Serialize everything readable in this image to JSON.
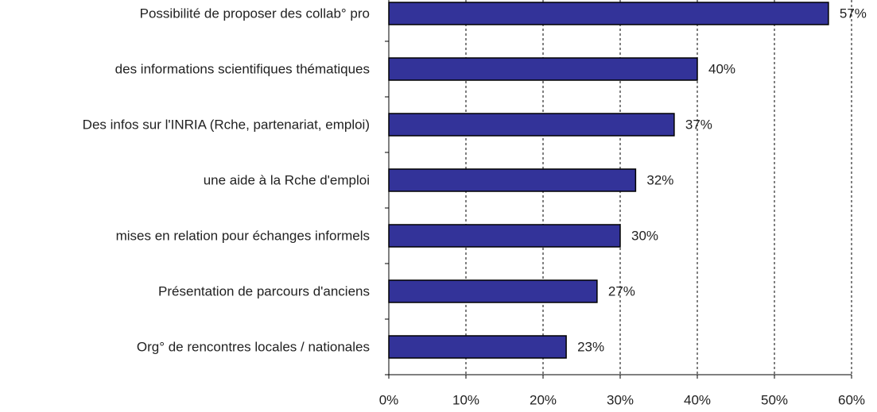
{
  "chart_data": {
    "type": "barh",
    "categories": [
      "Possibilité de proposer des collab° pro",
      "des informations scientifiques thématiques",
      "Des infos sur l'INRIA (Rche, partenariat, emploi)",
      "une aide à la Rche d'emploi",
      "mises en relation pour échanges informels",
      "Présentation de parcours d'anciens",
      "Org° de rencontres locales / nationales"
    ],
    "values": [
      57,
      40,
      37,
      32,
      30,
      27,
      23
    ],
    "value_labels": [
      "57%",
      "40%",
      "37%",
      "32%",
      "30%",
      "27%",
      "23%"
    ],
    "color": "#333399",
    "xlim": [
      0,
      60
    ],
    "xticks": [
      {
        "value": 0,
        "label": "0%"
      },
      {
        "value": 10,
        "label": "10%"
      },
      {
        "value": 20,
        "label": "20%"
      },
      {
        "value": 30,
        "label": "30%"
      },
      {
        "value": 40,
        "label": "40%"
      },
      {
        "value": 50,
        "label": "50%"
      },
      {
        "value": 60,
        "label": "60%"
      }
    ],
    "grid": true
  }
}
